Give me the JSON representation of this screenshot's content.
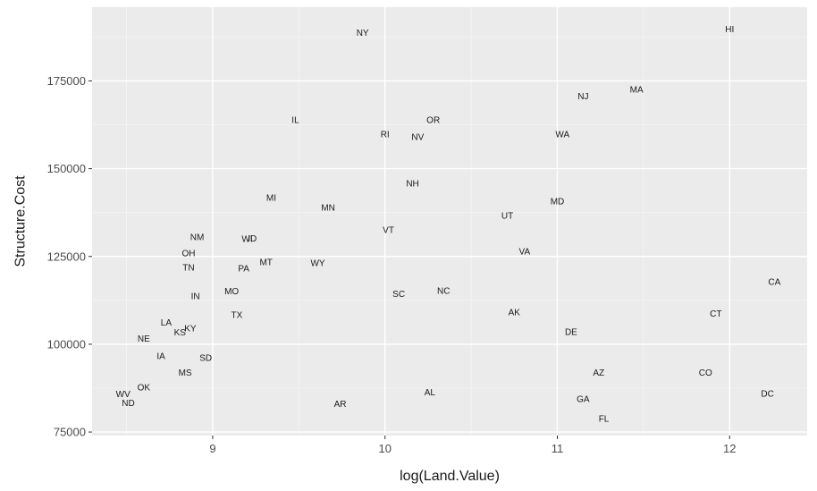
{
  "chart_data": {
    "type": "scatter",
    "mark": "text-labels",
    "xlabel": "log(Land.Value)",
    "ylabel": "Structure.Cost",
    "xlim": [
      8.3,
      12.45
    ],
    "ylim": [
      74000,
      196000
    ],
    "x_ticks": [
      9,
      10,
      11,
      12
    ],
    "y_ticks": [
      75000,
      100000,
      125000,
      150000,
      175000
    ],
    "x_tick_labels": [
      "9",
      "10",
      "11",
      "12"
    ],
    "y_tick_labels": [
      "75000",
      "100000",
      "125000",
      "150000",
      "175000"
    ],
    "grid": true,
    "colors": {
      "panel": "#ebebeb",
      "grid_major": "#ffffff",
      "grid_minor": "#f5f5f5",
      "text": "#1a1a1a",
      "tick_text": "#4d4d4d",
      "tick_mark": "#333333"
    },
    "points": [
      {
        "label": "NY",
        "x": 9.87,
        "y": 188800
      },
      {
        "label": "HI",
        "x": 12.0,
        "y": 189800
      },
      {
        "label": "MA",
        "x": 11.46,
        "y": 172600
      },
      {
        "label": "NJ",
        "x": 11.15,
        "y": 170600
      },
      {
        "label": "IL",
        "x": 9.48,
        "y": 163900
      },
      {
        "label": "OR",
        "x": 10.28,
        "y": 163900
      },
      {
        "label": "RI",
        "x": 10.0,
        "y": 159800
      },
      {
        "label": "NV",
        "x": 10.19,
        "y": 159100
      },
      {
        "label": "WA",
        "x": 11.03,
        "y": 159800
      },
      {
        "label": "NH",
        "x": 10.16,
        "y": 145800
      },
      {
        "label": "MI",
        "x": 9.34,
        "y": 141700
      },
      {
        "label": "MD",
        "x": 11.0,
        "y": 140700
      },
      {
        "label": "MN",
        "x": 9.67,
        "y": 138900
      },
      {
        "label": "UT",
        "x": 10.71,
        "y": 136600
      },
      {
        "label": "VT",
        "x": 10.02,
        "y": 132600
      },
      {
        "label": "NM",
        "x": 8.91,
        "y": 130600
      },
      {
        "label": "WI",
        "x": 9.2,
        "y": 130000
      },
      {
        "label": "ID",
        "x": 9.23,
        "y": 130100
      },
      {
        "label": "OH",
        "x": 8.86,
        "y": 126000
      },
      {
        "label": "VA",
        "x": 10.81,
        "y": 126500
      },
      {
        "label": "MT",
        "x": 9.31,
        "y": 123400
      },
      {
        "label": "WY",
        "x": 9.61,
        "y": 123100
      },
      {
        "label": "TN",
        "x": 8.86,
        "y": 121900
      },
      {
        "label": "PA",
        "x": 9.18,
        "y": 121600
      },
      {
        "label": "CA",
        "x": 12.26,
        "y": 117800
      },
      {
        "label": "MO",
        "x": 9.11,
        "y": 115100
      },
      {
        "label": "NC",
        "x": 10.34,
        "y": 115300
      },
      {
        "label": "SC",
        "x": 10.08,
        "y": 114400
      },
      {
        "label": "IN",
        "x": 8.9,
        "y": 113700
      },
      {
        "label": "AK",
        "x": 10.75,
        "y": 109100
      },
      {
        "label": "CT",
        "x": 11.92,
        "y": 108800
      },
      {
        "label": "TX",
        "x": 9.14,
        "y": 108400
      },
      {
        "label": "LA",
        "x": 8.73,
        "y": 106200
      },
      {
        "label": "KY",
        "x": 8.87,
        "y": 104600
      },
      {
        "label": "KS",
        "x": 8.81,
        "y": 103400
      },
      {
        "label": "DE",
        "x": 11.08,
        "y": 103600
      },
      {
        "label": "NE",
        "x": 8.6,
        "y": 101600
      },
      {
        "label": "IA",
        "x": 8.7,
        "y": 96700
      },
      {
        "label": "SD",
        "x": 8.96,
        "y": 96200
      },
      {
        "label": "MS",
        "x": 8.84,
        "y": 92000
      },
      {
        "label": "AZ",
        "x": 11.24,
        "y": 91900
      },
      {
        "label": "CO",
        "x": 11.86,
        "y": 91900
      },
      {
        "label": "OK",
        "x": 8.6,
        "y": 87800
      },
      {
        "label": "WV",
        "x": 8.48,
        "y": 85800
      },
      {
        "label": "AL",
        "x": 10.26,
        "y": 86300
      },
      {
        "label": "DC",
        "x": 12.22,
        "y": 86000
      },
      {
        "label": "GA",
        "x": 11.15,
        "y": 84400
      },
      {
        "label": "ND",
        "x": 8.51,
        "y": 83300
      },
      {
        "label": "AR",
        "x": 9.74,
        "y": 83000
      },
      {
        "label": "FL",
        "x": 11.27,
        "y": 78800
      }
    ]
  }
}
